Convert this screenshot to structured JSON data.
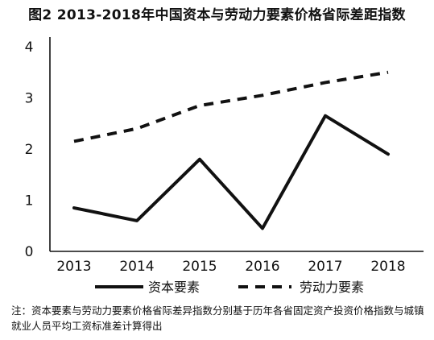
{
  "title": "图2  2013-2018年中国资本与劳动力要素价格省际差距指数",
  "note": "注：资本要素与劳动力要素价格省际差异指数分别基于历年各省固定资产投资价格指数与城镇就业人员平均工资标准差计算得出",
  "chart_data": {
    "type": "line",
    "title": "图2  2013-2018年中国资本与劳动力要素价格省际差距指数",
    "xlabel": "",
    "ylabel": "",
    "categories": [
      "2013",
      "2014",
      "2015",
      "2016",
      "2017",
      "2018"
    ],
    "yticks": [
      "0",
      "1",
      "2",
      "3",
      "4"
    ],
    "ylim": [
      0,
      4
    ],
    "grid": false,
    "legend_position": "bottom",
    "series": [
      {
        "name": "资本要素",
        "style": "solid",
        "color": "#111111",
        "values": [
          0.85,
          0.6,
          1.8,
          0.45,
          2.65,
          1.9
        ]
      },
      {
        "name": "劳动力要素",
        "style": "dashed",
        "color": "#111111",
        "values": [
          2.15,
          2.4,
          2.85,
          3.05,
          3.3,
          3.5
        ]
      }
    ]
  }
}
